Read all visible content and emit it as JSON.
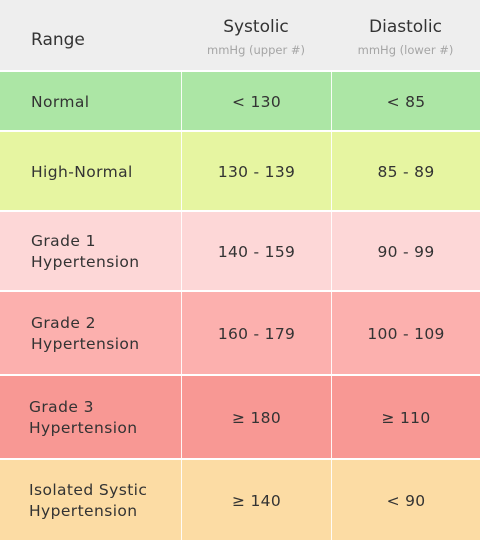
{
  "header": {
    "range_label": "Range",
    "systolic_label": "Systolic",
    "systolic_unit": "mmHg (upper #)",
    "diastolic_label": "Diastolic",
    "diastolic_unit": "mmHg (lower #)",
    "background": "#eeeeee"
  },
  "rows": [
    {
      "label_line1": "Normal",
      "label_line2": "",
      "systolic": "< 130",
      "diastolic": "< 85",
      "color": "#ace6a5"
    },
    {
      "label_line1": "High-Normal",
      "label_line2": "",
      "systolic": "130 - 139",
      "diastolic": "85 - 89",
      "color": "#e6f5a1"
    },
    {
      "label_line1": "Grade 1",
      "label_line2": "Hypertension",
      "systolic": "140 - 159",
      "diastolic": "90 - 99",
      "color": "#fdd7d7"
    },
    {
      "label_line1": "Grade 2",
      "label_line2": "Hypertension",
      "systolic": "160 - 179",
      "diastolic": "100 - 109",
      "color": "#fcb0ae"
    },
    {
      "label_line1": "Grade 3",
      "label_line2": "Hypertension",
      "systolic": "≥ 180",
      "diastolic": "≥ 110",
      "color": "#f89894"
    },
    {
      "label_line1": "Isolated Systic",
      "label_line2": "Hypertension",
      "systolic": "≥ 140",
      "diastolic": "< 90",
      "color": "#fcdca4"
    }
  ]
}
